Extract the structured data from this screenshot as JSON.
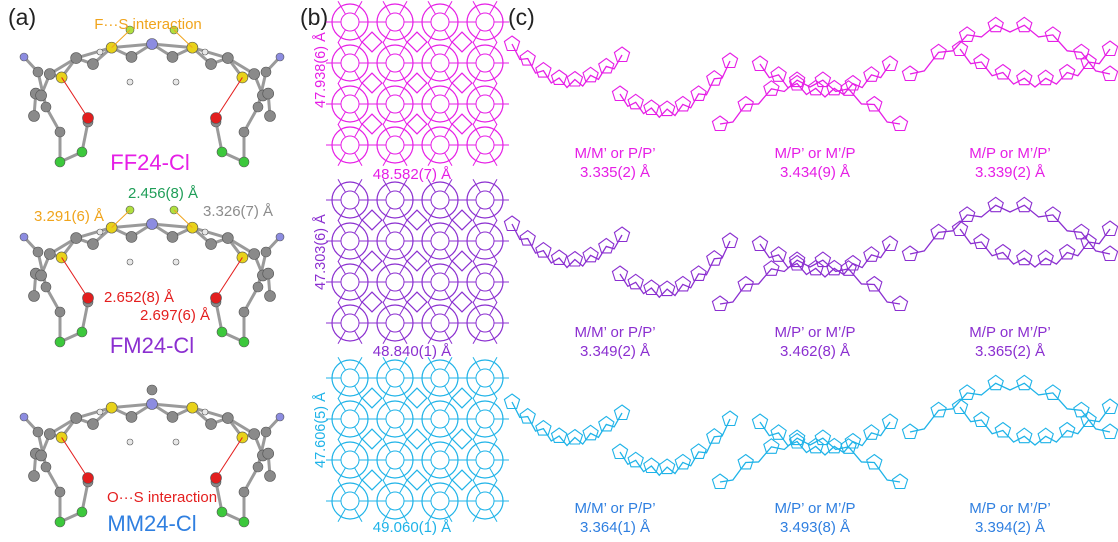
{
  "panels": {
    "a": "(a)",
    "b": "(b)",
    "c": "(c)"
  },
  "colors": {
    "ff": "#e61ee6",
    "fm": "#8b2fd0",
    "mm": "#1fb3e8",
    "orange": "#f0a41c",
    "green": "#1f9e58",
    "gray": "#8c8c8c",
    "red": "#e41e1e",
    "blue_text": "#2f7fe0",
    "atom_gray": "#8a8a8a",
    "atom_s": "#e8d21a",
    "atom_o": "#e21e1e",
    "atom_n": "#8c8ce0",
    "atom_cl": "#3cc83c",
    "atom_h": "#e8e8e8"
  },
  "panel_a": {
    "fs_label": "F···S interaction",
    "os_label": "O···S interaction",
    "ff_name": "FF24-Cl",
    "fm_name": "FM24-Cl",
    "mm_name": "MM24-Cl",
    "d_green": "2.456(8) Å",
    "d_orange": "3.291(6) Å",
    "d_gray": "3.326(7) Å",
    "d_red1": "2.652(8) Å",
    "d_red2": "2.697(6) Å"
  },
  "panel_b": {
    "ff": {
      "vertical": "47.938(6) Å",
      "horizontal": "48.582(7) Å"
    },
    "fm": {
      "vertical": "47.303(6) Å",
      "horizontal": "48.840(1) Å"
    },
    "mm": {
      "vertical": "47.606(5) Å",
      "horizontal": "49.060(1) Å"
    }
  },
  "panel_c": {
    "ff": [
      {
        "pair": "M/M’ or P/P’",
        "dist": "3.335(2) Å"
      },
      {
        "pair": "M/P’ or M’/P",
        "dist": "3.434(9) Å"
      },
      {
        "pair": "M/P or M’/P’",
        "dist": "3.339(2) Å"
      }
    ],
    "fm": [
      {
        "pair": "M/M’ or P/P’",
        "dist": "3.349(2) Å"
      },
      {
        "pair": "M/P’ or M’/P",
        "dist": "3.462(8) Å"
      },
      {
        "pair": "M/P or M’/P’",
        "dist": "3.365(2) Å"
      }
    ],
    "mm": [
      {
        "pair": "M/M’ or P/P’",
        "dist": "3.364(1) Å"
      },
      {
        "pair": "M/P’ or M’/P",
        "dist": "3.493(8) Å"
      },
      {
        "pair": "M/P or M’/P’",
        "dist": "3.394(2) Å"
      }
    ]
  }
}
